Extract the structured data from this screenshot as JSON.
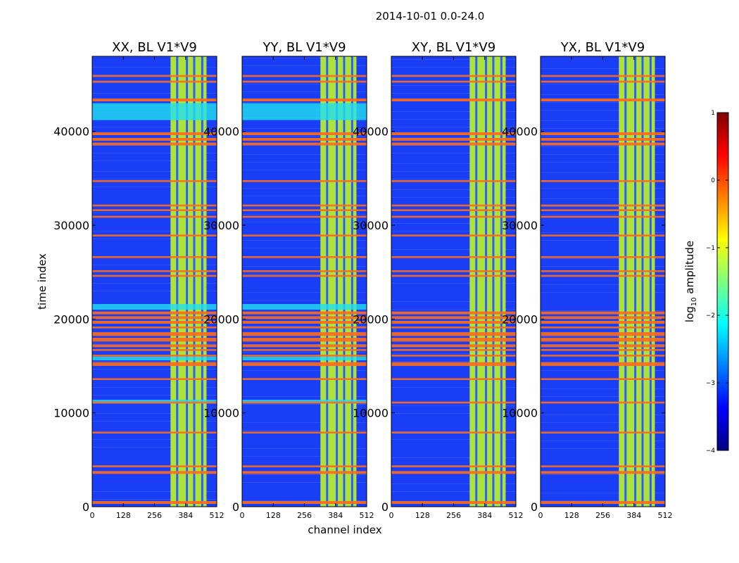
{
  "figure": {
    "title": "2014-10-01 0.0-24.0",
    "xlabel": "channel index",
    "ylabel": "time index"
  },
  "colorbar": {
    "label_prefix": "log",
    "label_sub": "10",
    "label_suffix": " amplitude",
    "range": [
      -4,
      1
    ],
    "ticks": [
      "1",
      "0",
      "−1",
      "−2",
      "−3",
      "−4"
    ],
    "tick_values": [
      1,
      0,
      -1,
      -2,
      -3,
      -4
    ],
    "colormap": "jet"
  },
  "colors": {
    "background": "#1a3ef5",
    "flag": "#ff6a1a",
    "rfi_band": "#b8f028",
    "cyan_band": "#20e0f0"
  },
  "chart_data": [
    {
      "type": "heatmap",
      "title": "XX, BL V1*V9",
      "xlim": [
        0,
        512
      ],
      "ylim": [
        0,
        48000
      ],
      "xticks": [
        0,
        128,
        256,
        384,
        512
      ],
      "yticks": [
        0,
        10000,
        20000,
        30000,
        40000
      ],
      "colorbar_range": [
        -4,
        1
      ]
    },
    {
      "type": "heatmap",
      "title": "YY, BL V1*V9",
      "xlim": [
        0,
        512
      ],
      "ylim": [
        0,
        48000
      ],
      "xticks": [
        0,
        128,
        256,
        384,
        512
      ],
      "yticks": [
        0,
        10000,
        20000,
        30000,
        40000
      ],
      "colorbar_range": [
        -4,
        1
      ]
    },
    {
      "type": "heatmap",
      "title": "XY, BL V1*V9",
      "xlim": [
        0,
        512
      ],
      "ylim": [
        0,
        48000
      ],
      "xticks": [
        0,
        128,
        256,
        384,
        512
      ],
      "yticks": [
        0,
        10000,
        20000,
        30000,
        40000
      ],
      "colorbar_range": [
        -4,
        1
      ]
    },
    {
      "type": "heatmap",
      "title": "YX, BL V1*V9",
      "xlim": [
        0,
        512
      ],
      "ylim": [
        0,
        48000
      ],
      "xticks": [
        0,
        128,
        256,
        384,
        512
      ],
      "yticks": [
        0,
        10000,
        20000,
        30000,
        40000
      ],
      "colorbar_range": [
        -4,
        1
      ]
    }
  ],
  "flagged_time_ranges": [
    [
      300,
      600
    ],
    [
      3500,
      3800
    ],
    [
      4200,
      4400
    ],
    [
      7800,
      8000
    ],
    [
      11000,
      11200
    ],
    [
      13500,
      13700
    ],
    [
      15000,
      15400
    ],
    [
      16000,
      16200
    ],
    [
      16600,
      16800
    ],
    [
      17000,
      17300
    ],
    [
      17600,
      18000
    ],
    [
      18200,
      18600
    ],
    [
      19000,
      19200
    ],
    [
      19500,
      19800
    ],
    [
      20000,
      20300
    ],
    [
      20500,
      20800
    ],
    [
      24500,
      24700
    ],
    [
      25000,
      25200
    ],
    [
      26500,
      26700
    ],
    [
      28800,
      29000
    ],
    [
      30800,
      31000
    ],
    [
      31500,
      31700
    ],
    [
      32000,
      32200
    ],
    [
      34600,
      34800
    ],
    [
      38500,
      38800
    ],
    [
      39000,
      39300
    ],
    [
      39600,
      39900
    ],
    [
      43200,
      43500
    ],
    [
      45200,
      45400
    ],
    [
      45800,
      46000
    ]
  ],
  "rfi_channel_range": [
    322,
    470
  ]
}
